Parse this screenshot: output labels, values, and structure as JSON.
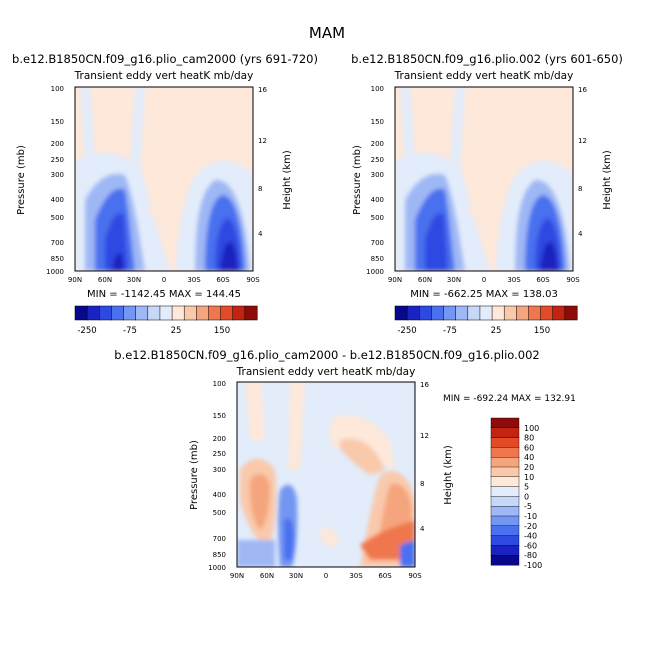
{
  "page_title": "MAM",
  "colors": {
    "levels_top": [
      "#08088c",
      "#1a22c0",
      "#2d49e2",
      "#4a6fef",
      "#7396f2",
      "#9fb8f5",
      "#c6d8f8",
      "#e2ecfb",
      "#fde8da",
      "#f9c9ac",
      "#f5a57d",
      "#f0774d",
      "#e34a26",
      "#c32412",
      "#8e0b0b"
    ],
    "levels_diff": [
      "#08088c",
      "#1a22c0",
      "#2d49e2",
      "#4a6fef",
      "#7396f2",
      "#9fb8f5",
      "#c6d8f8",
      "#e2ecfb",
      "#fde8da",
      "#f9c9ac",
      "#f5a57d",
      "#f0774d",
      "#e34a26",
      "#c32412",
      "#8e0b0b"
    ]
  },
  "chart_data": [
    {
      "type": "heatmap",
      "id": "left",
      "case_title": "b.e12.B1850CN.f09_g16.plio_cam2000 (yrs 691-720)",
      "subtitle": "Transient eddy vert heatK mb/day",
      "ylabel": "Pressure (mb)",
      "y2label": "Height (km)",
      "xticks": [
        "90N",
        "60N",
        "30N",
        "0",
        "30S",
        "60S",
        "90S"
      ],
      "yticks": [
        "100",
        "150",
        "200",
        "250",
        "300",
        "400",
        "500",
        "700",
        "850",
        "1000"
      ],
      "y2ticks": [
        "16",
        "12",
        "8",
        "4"
      ],
      "stats": "MIN = -1142.45   MAX = 144.45",
      "min": -1142.45,
      "max": 144.45,
      "colorbar_ticks": [
        "-250",
        "-75",
        "25",
        "150"
      ]
    },
    {
      "type": "heatmap",
      "id": "right",
      "case_title": "b.e12.B1850CN.f09_g16.plio.002 (yrs 601-650)",
      "subtitle": "Transient eddy vert heatK mb/day",
      "ylabel": "Pressure (mb)",
      "y2label": "Height (km)",
      "xticks": [
        "90N",
        "60N",
        "30N",
        "0",
        "30S",
        "60S",
        "90S"
      ],
      "yticks": [
        "100",
        "150",
        "200",
        "250",
        "300",
        "400",
        "500",
        "700",
        "850",
        "1000"
      ],
      "y2ticks": [
        "16",
        "12",
        "8",
        "4"
      ],
      "stats": "MIN = -662.25   MAX = 138.03",
      "min": -662.25,
      "max": 138.03,
      "colorbar_ticks": [
        "-250",
        "-75",
        "25",
        "150"
      ]
    },
    {
      "type": "heatmap",
      "id": "diff",
      "case_title": "b.e12.B1850CN.f09_g16.plio_cam2000 - b.e12.B1850CN.f09_g16.plio.002",
      "subtitle": "Transient eddy vert heatK mb/day",
      "ylabel": "Pressure (mb)",
      "y2label": "Height (km)",
      "xticks": [
        "90N",
        "60N",
        "30N",
        "0",
        "30S",
        "60S",
        "90S"
      ],
      "yticks": [
        "100",
        "150",
        "200",
        "250",
        "300",
        "400",
        "500",
        "700",
        "850",
        "1000"
      ],
      "y2ticks": [
        "16",
        "12",
        "8",
        "4"
      ],
      "stats": "MIN = -692.24   MAX = 132.91",
      "min": -692.24,
      "max": 132.91,
      "colorbar_ticks": [
        "100",
        "80",
        "60",
        "40",
        "20",
        "10",
        "5",
        "0",
        "-5",
        "-10",
        "-20",
        "-40",
        "-60",
        "-80",
        "-100"
      ]
    }
  ]
}
